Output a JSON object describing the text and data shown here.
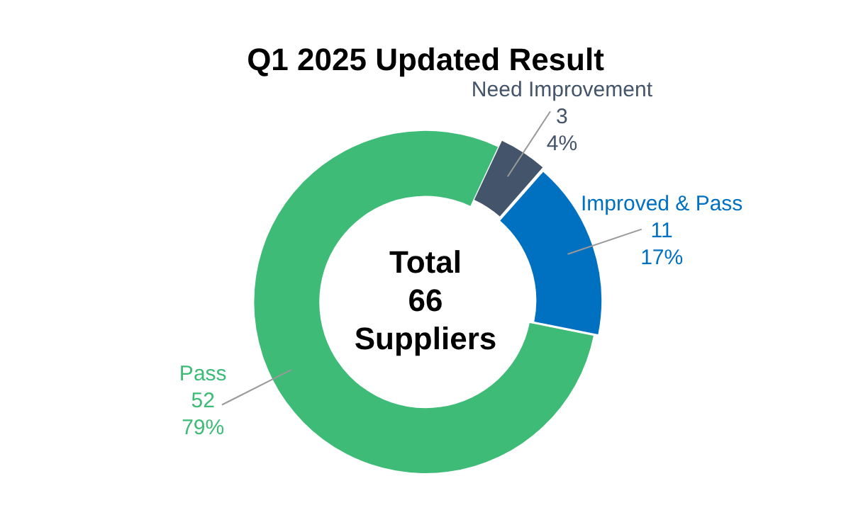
{
  "chart_data": {
    "type": "donut",
    "title": "Q1 2025 Updated Result",
    "categories": [
      "Need Improvement",
      "Improved & Pass",
      "Pass"
    ],
    "values": [
      3,
      11,
      52
    ],
    "colors": [
      "#44546a",
      "#0070c0",
      "#3dbb77"
    ],
    "value_labels": [
      "3\n4%",
      "11\n17%",
      "52\n79%"
    ],
    "annotations": [
      "Total\n66\nSuppliers"
    ],
    "legend": false
  }
}
